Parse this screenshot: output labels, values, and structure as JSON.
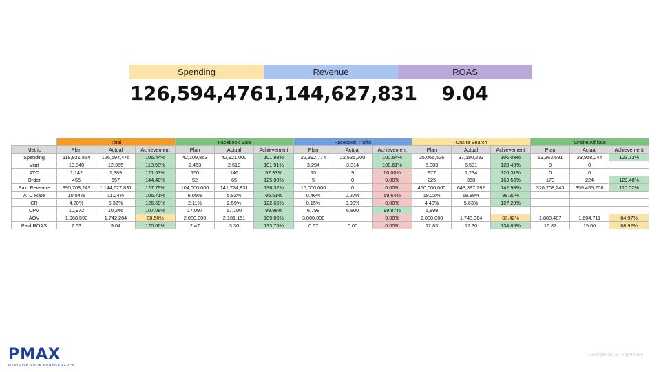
{
  "kpis": [
    {
      "label": "Spending",
      "value": "126,594,476"
    },
    {
      "label": "Revenue",
      "value": "1,144,627,831"
    },
    {
      "label": "ROAS",
      "value": "9.04"
    }
  ],
  "colors": {
    "total": "#f59a23",
    "facebook_sale": "#7ac37a",
    "facebook_traffic": "#6f9fe0",
    "onsite_search": "#fde49a",
    "onsite_affiliate": "#7ac37a",
    "achievement_good": "#b7e1c2",
    "achievement_warn": "#fbe3a3",
    "achievement_bad": "#f4c7c7"
  },
  "table": {
    "groups": [
      "Total",
      "Facebook Sale",
      "Facebook Traffic",
      "Onsite Search",
      "Onsite Affiliate"
    ],
    "metric_header": "Metric",
    "sub_headers": [
      "Plan",
      "Actual",
      "Achievement"
    ],
    "rows": [
      {
        "metric": "Spending",
        "cells": [
          [
            "118,931,854",
            "126,594,476",
            "106.44%",
            "good"
          ],
          [
            "42,109,863",
            "42,921,000",
            "101.93%",
            "good"
          ],
          [
            "22,392,774",
            "22,535,200",
            "100.64%",
            "good"
          ],
          [
            "35,065,526",
            "37,180,233",
            "106.03%",
            "good"
          ],
          [
            "19,363,691",
            "23,958,044",
            "123.73%",
            "good"
          ]
        ]
      },
      {
        "metric": "Visit",
        "cells": [
          [
            "10,840",
            "12,355",
            "113.98%",
            "good"
          ],
          [
            "2,463",
            "2,510",
            "101.91%",
            "good"
          ],
          [
            "3,294",
            "3,314",
            "100.61%",
            "good"
          ],
          [
            "5,083",
            "6,531",
            "128.49%",
            "good"
          ],
          [
            "0",
            "0",
            "",
            ""
          ]
        ]
      },
      {
        "metric": "ATC",
        "cells": [
          [
            "1,142",
            "1,389",
            "121.63%",
            "good"
          ],
          [
            "150",
            "146",
            "97.33%",
            "good"
          ],
          [
            "15",
            "9",
            "60.00%",
            "bad"
          ],
          [
            "977",
            "1,234",
            "126.31%",
            "good"
          ],
          [
            "0",
            "0",
            "",
            ""
          ]
        ]
      },
      {
        "metric": "Order",
        "cells": [
          [
            "455",
            "657",
            "144.40%",
            "good"
          ],
          [
            "52",
            "65",
            "125.00%",
            "good"
          ],
          [
            "5",
            "0",
            "0.00%",
            "bad"
          ],
          [
            "225",
            "368",
            "163.56%",
            "good"
          ],
          [
            "173",
            "224",
            "129.48%",
            "good"
          ]
        ]
      },
      {
        "metric": "Paid Revenue",
        "cells": [
          [
            "895,708,243",
            "1,144,627,831",
            "127.79%",
            "good"
          ],
          [
            "104,000,000",
            "141,774,831",
            "136.32%",
            "good"
          ],
          [
            "15,000,000",
            "0",
            "0.00%",
            "bad"
          ],
          [
            "450,000,000",
            "643,397,792",
            "142.98%",
            "good"
          ],
          [
            "326,708,243",
            "359,455,208",
            "110.02%",
            "good"
          ]
        ]
      },
      {
        "metric": "ATC Rate",
        "cells": [
          [
            "10.54%",
            "11.24%",
            "106.71%",
            "good"
          ],
          [
            "6.09%",
            "5.82%",
            "95.51%",
            "good"
          ],
          [
            "0.46%",
            "0.27%",
            "59.64%",
            "bad"
          ],
          [
            "19.22%",
            "18.89%",
            "98.30%",
            "good"
          ],
          [
            "",
            "",
            "",
            ""
          ]
        ]
      },
      {
        "metric": "CR",
        "cells": [
          [
            "4.20%",
            "5.32%",
            "126.69%",
            "good"
          ],
          [
            "2.11%",
            "2.59%",
            "122.66%",
            "good"
          ],
          [
            "0.15%",
            "0.00%",
            "0.00%",
            "bad"
          ],
          [
            "4.43%",
            "5.63%",
            "127.29%",
            "good"
          ],
          [
            "",
            "",
            "",
            ""
          ]
        ]
      },
      {
        "metric": "CPV",
        "cells": [
          [
            "10,972",
            "10,246",
            "107.08%",
            "good"
          ],
          [
            "17,097",
            "17,100",
            "99.98%",
            "good"
          ],
          [
            "6,798",
            "6,800",
            "99.97%",
            "good"
          ],
          [
            "6,899",
            "",
            "",
            ""
          ],
          [
            "",
            "",
            "",
            ""
          ]
        ]
      },
      {
        "metric": "AOV",
        "cells": [
          [
            "1,968,590",
            "1,742,204",
            "88.50%",
            "warn"
          ],
          [
            "2,000,000",
            "2,181,151",
            "109.06%",
            "good"
          ],
          [
            "3,000,000",
            "",
            "0.00%",
            "bad"
          ],
          [
            "2,000,000",
            "1,748,364",
            "87.42%",
            "warn"
          ],
          [
            "1,888,487",
            "1,604,711",
            "84.97%",
            "warn"
          ]
        ]
      },
      {
        "metric": "Paid ROAS",
        "cells": [
          [
            "7.53",
            "9.04",
            "120.06%",
            "good"
          ],
          [
            "2.47",
            "3.30",
            "133.75%",
            "good"
          ],
          [
            "0.67",
            "0.00",
            "0.00%",
            "bad"
          ],
          [
            "12.83",
            "17.30",
            "134.85%",
            "good"
          ],
          [
            "16.87",
            "15.00",
            "88.92%",
            "warn"
          ]
        ]
      }
    ]
  },
  "brand": {
    "logo_text": "PMAX",
    "tagline": "MAXIMIZE YOUR PERFORMANCE"
  },
  "footer_note": "Confidential & Proprietary"
}
